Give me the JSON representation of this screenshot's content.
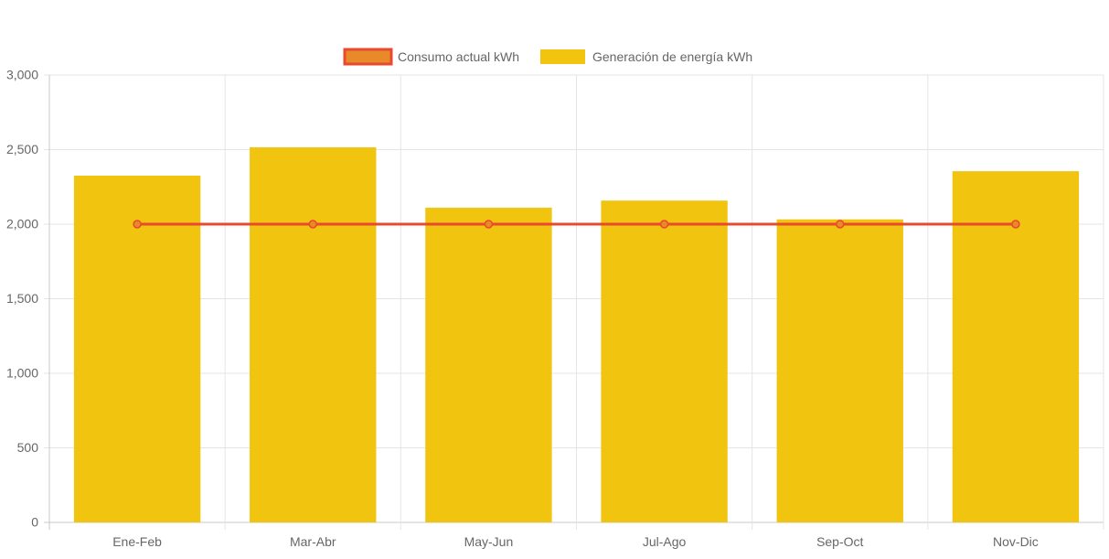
{
  "chart_data": {
    "type": "bar",
    "title": "",
    "xlabel": "",
    "ylabel": "",
    "categories": [
      "Ene-Feb",
      "Mar-Abr",
      "May-Jun",
      "Jul-Ago",
      "Sep-Oct",
      "Nov-Dic"
    ],
    "ylim": [
      0,
      3000
    ],
    "yticks": [
      0,
      500,
      1000,
      1500,
      2000,
      2500,
      3000
    ],
    "ytick_labels": [
      "0",
      "500",
      "1,000",
      "1,500",
      "2,000",
      "2,500",
      "3,000"
    ],
    "grid": true,
    "legend_position": "top",
    "series": [
      {
        "name": "Consumo actual kWh",
        "type": "line",
        "color": "#e8492f",
        "point_fill": "#e8892a",
        "values": [
          2000,
          2000,
          2000,
          2000,
          2000,
          2000
        ]
      },
      {
        "name": "Generación de energía kWh",
        "type": "bar",
        "color": "#f0c40f",
        "values": [
          2325,
          2515,
          2110,
          2158,
          2032,
          2355
        ]
      }
    ]
  }
}
